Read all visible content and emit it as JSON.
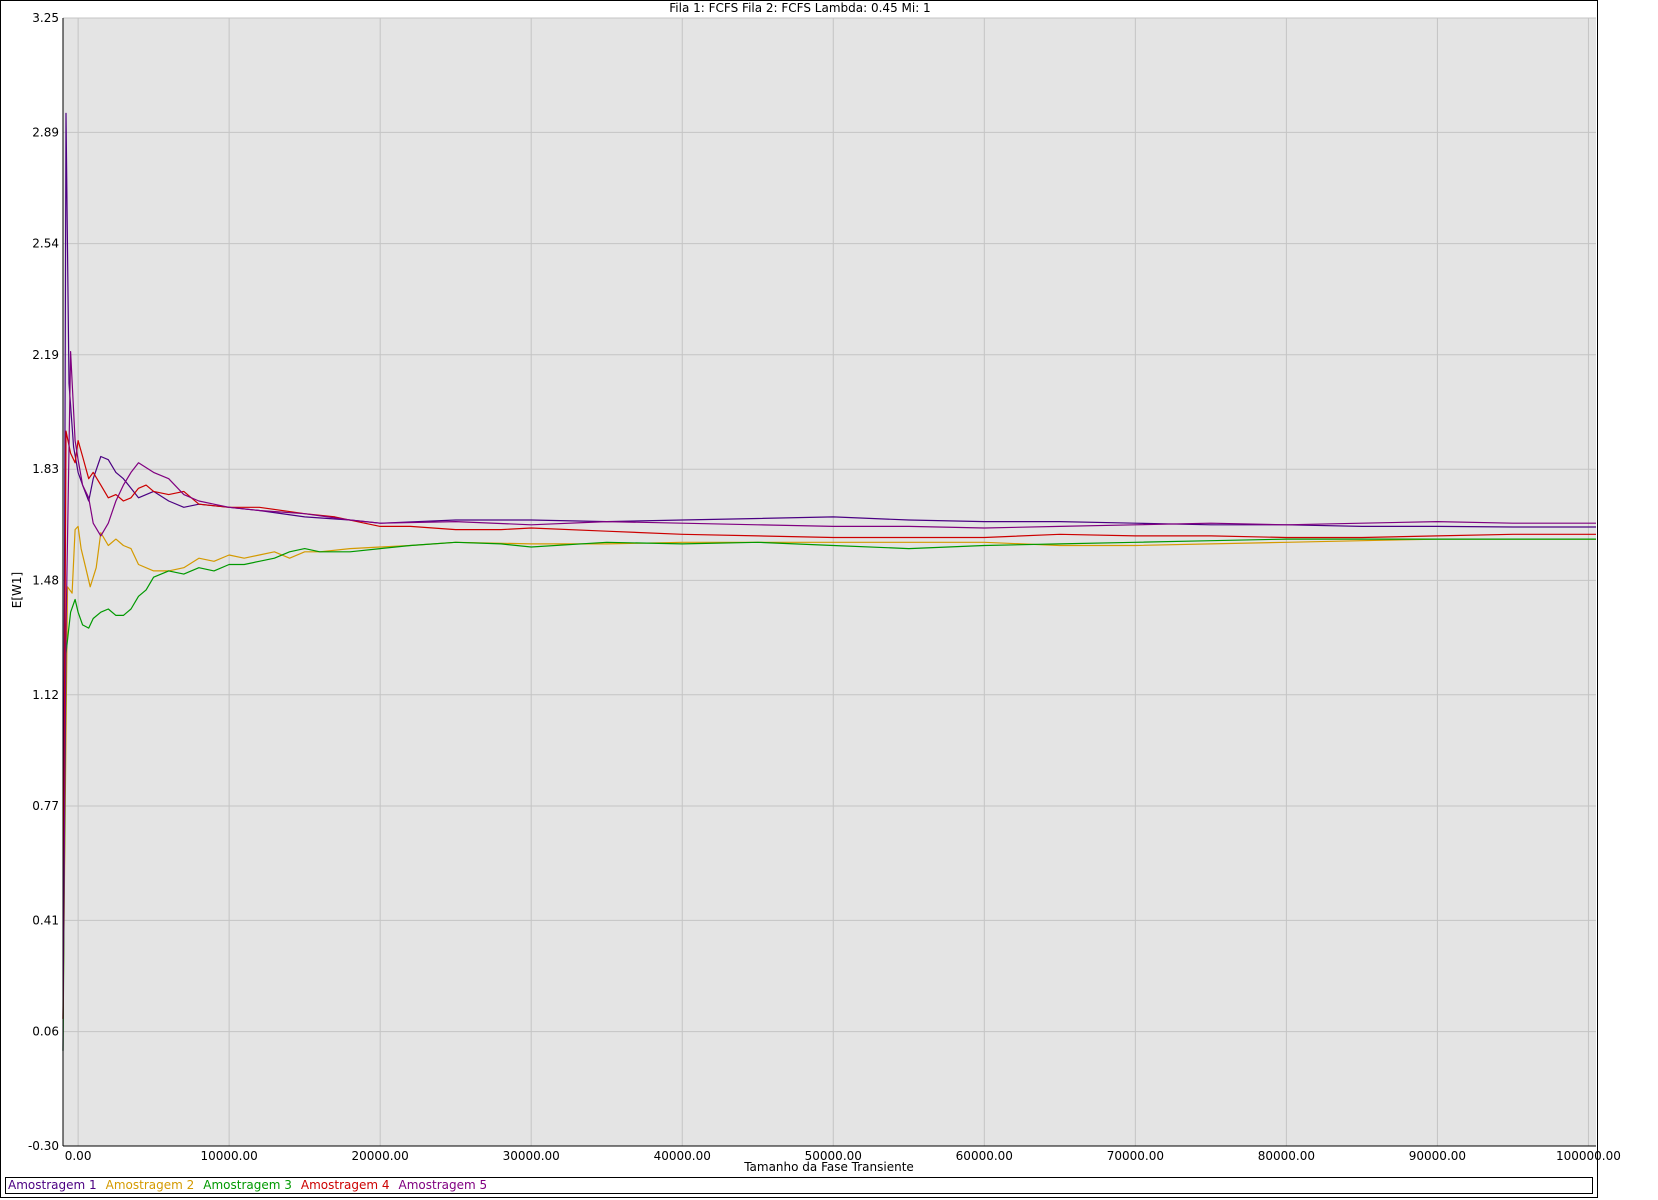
{
  "chart_data": {
    "type": "line",
    "title": "Fila 1: FCFS Fila 2: FCFS Lambda: 0.45 Mi: 1",
    "xlabel": "Tamanho da Fase Transiente",
    "ylabel": "E[W1]",
    "xlim": [
      -1000,
      100500
    ],
    "ylim": [
      -0.3,
      3.25
    ],
    "xticks": [
      0,
      10000,
      20000,
      30000,
      40000,
      50000,
      60000,
      70000,
      80000,
      90000,
      100000
    ],
    "xtick_labels": [
      "0.00",
      "10000.00",
      "20000.00",
      "30000.00",
      "40000.00",
      "50000.00",
      "60000.00",
      "70000.00",
      "80000.00",
      "90000.00",
      "100000.00"
    ],
    "yticks": [
      -0.3,
      0.06,
      0.41,
      0.77,
      1.12,
      1.48,
      1.83,
      2.19,
      2.54,
      2.89,
      3.25
    ],
    "ytick_labels": [
      "-0.30",
      "0.06",
      "0.41",
      "0.77",
      "1.12",
      "1.48",
      "1.83",
      "2.19",
      "2.54",
      "2.89",
      "3.25"
    ],
    "grid": true,
    "legend_position": "bottom",
    "series": [
      {
        "name": "Amostragem 1",
        "color": "#4b0082",
        "x": [
          -1000,
          -800,
          -600,
          -300,
          0,
          300,
          700,
          1000,
          1500,
          2000,
          2500,
          3000,
          3500,
          4000,
          5000,
          6000,
          7000,
          8000,
          10000,
          12000,
          15000,
          18000,
          20000,
          25000,
          30000,
          35000,
          40000,
          45000,
          50000,
          55000,
          60000,
          65000,
          70000,
          75000,
          80000,
          85000,
          90000,
          95000,
          100500
        ],
        "y": [
          0.0,
          2.95,
          2.1,
          1.9,
          1.82,
          1.78,
          1.73,
          1.8,
          1.87,
          1.86,
          1.82,
          1.8,
          1.77,
          1.74,
          1.76,
          1.73,
          1.71,
          1.72,
          1.71,
          1.7,
          1.68,
          1.67,
          1.66,
          1.67,
          1.67,
          1.665,
          1.67,
          1.675,
          1.68,
          1.67,
          1.665,
          1.665,
          1.66,
          1.655,
          1.655,
          1.65,
          1.65,
          1.648,
          1.648
        ]
      },
      {
        "name": "Amostragem 2",
        "color": "#d49a00",
        "x": [
          -1000,
          -700,
          -400,
          -200,
          0,
          200,
          500,
          800,
          1200,
          1500,
          2000,
          2500,
          3000,
          3500,
          4000,
          5000,
          6000,
          7000,
          8000,
          9000,
          10000,
          11000,
          12000,
          13000,
          14000,
          15000,
          16000,
          18000,
          20000,
          22000,
          25000,
          30000,
          35000,
          40000,
          45000,
          50000,
          55000,
          60000,
          65000,
          70000,
          75000,
          80000,
          85000,
          90000,
          95000,
          100500
        ],
        "y": [
          0.1,
          1.46,
          1.44,
          1.64,
          1.65,
          1.58,
          1.52,
          1.46,
          1.52,
          1.63,
          1.59,
          1.61,
          1.59,
          1.58,
          1.53,
          1.51,
          1.51,
          1.52,
          1.55,
          1.54,
          1.56,
          1.55,
          1.56,
          1.57,
          1.55,
          1.57,
          1.57,
          1.58,
          1.585,
          1.59,
          1.6,
          1.595,
          1.595,
          1.6,
          1.6,
          1.6,
          1.6,
          1.6,
          1.59,
          1.59,
          1.595,
          1.6,
          1.605,
          1.61,
          1.61,
          1.61
        ]
      },
      {
        "name": "Amostragem 3",
        "color": "#009900",
        "x": [
          -1000,
          -800,
          -500,
          -200,
          0,
          300,
          700,
          1000,
          1500,
          2000,
          2500,
          3000,
          3500,
          4000,
          4500,
          5000,
          6000,
          7000,
          8000,
          9000,
          10000,
          11000,
          12000,
          13000,
          14000,
          15000,
          16000,
          17000,
          18000,
          20000,
          22000,
          25000,
          28000,
          30000,
          35000,
          40000,
          45000,
          50000,
          55000,
          60000,
          65000,
          70000,
          75000,
          80000,
          85000,
          90000,
          95000,
          100500
        ],
        "y": [
          0.0,
          1.25,
          1.38,
          1.42,
          1.38,
          1.34,
          1.33,
          1.36,
          1.38,
          1.39,
          1.37,
          1.37,
          1.39,
          1.43,
          1.45,
          1.49,
          1.51,
          1.5,
          1.52,
          1.51,
          1.53,
          1.53,
          1.54,
          1.55,
          1.57,
          1.58,
          1.57,
          1.57,
          1.57,
          1.58,
          1.59,
          1.6,
          1.595,
          1.585,
          1.6,
          1.595,
          1.6,
          1.59,
          1.58,
          1.59,
          1.595,
          1.6,
          1.605,
          1.61,
          1.61,
          1.61,
          1.61,
          1.61
        ]
      },
      {
        "name": "Amostragem 4",
        "color": "#cc0000",
        "x": [
          -1000,
          -800,
          -500,
          -200,
          0,
          300,
          700,
          1000,
          1500,
          2000,
          2500,
          3000,
          3500,
          4000,
          4500,
          5000,
          6000,
          7000,
          8000,
          10000,
          12000,
          15000,
          17000,
          20000,
          22000,
          25000,
          28000,
          30000,
          35000,
          40000,
          45000,
          50000,
          55000,
          60000,
          65000,
          70000,
          75000,
          80000,
          85000,
          90000,
          95000,
          100500
        ],
        "y": [
          0.1,
          1.95,
          1.88,
          1.85,
          1.92,
          1.87,
          1.8,
          1.82,
          1.78,
          1.74,
          1.75,
          1.73,
          1.74,
          1.77,
          1.78,
          1.76,
          1.75,
          1.76,
          1.72,
          1.71,
          1.71,
          1.69,
          1.68,
          1.65,
          1.65,
          1.64,
          1.64,
          1.645,
          1.635,
          1.625,
          1.62,
          1.615,
          1.615,
          1.615,
          1.625,
          1.62,
          1.62,
          1.615,
          1.615,
          1.62,
          1.625,
          1.625
        ]
      },
      {
        "name": "Amostragem 5",
        "color": "#800080",
        "x": [
          -1000,
          -800,
          -500,
          -200,
          0,
          300,
          700,
          1000,
          1500,
          2000,
          2500,
          3000,
          3500,
          4000,
          5000,
          6000,
          7000,
          8000,
          9000,
          10000,
          12000,
          15000,
          18000,
          20000,
          25000,
          30000,
          35000,
          40000,
          45000,
          50000,
          55000,
          60000,
          65000,
          70000,
          75000,
          80000,
          85000,
          90000,
          95000,
          100500
        ],
        "y": [
          0.1,
          1.32,
          2.2,
          1.92,
          1.86,
          1.78,
          1.74,
          1.66,
          1.62,
          1.66,
          1.73,
          1.78,
          1.82,
          1.85,
          1.82,
          1.8,
          1.75,
          1.73,
          1.72,
          1.71,
          1.7,
          1.69,
          1.67,
          1.66,
          1.665,
          1.655,
          1.665,
          1.66,
          1.655,
          1.65,
          1.65,
          1.645,
          1.65,
          1.655,
          1.66,
          1.655,
          1.66,
          1.665,
          1.66,
          1.66
        ]
      }
    ]
  }
}
